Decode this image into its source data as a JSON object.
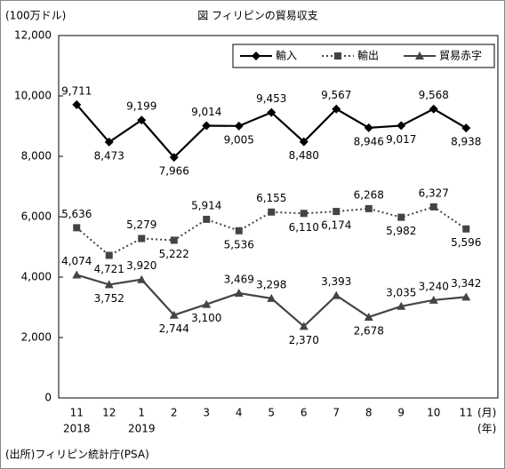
{
  "chart_data": {
    "type": "line",
    "title": "図 フィリピンの貿易収支",
    "y_unit": "(100万ドル)",
    "x_unit_month": "(月)",
    "x_unit_year": "(年)",
    "source": "(出所)フィリピン統計庁(PSA)",
    "categories": [
      "11",
      "12",
      "1",
      "2",
      "3",
      "4",
      "5",
      "6",
      "7",
      "8",
      "9",
      "10",
      "11"
    ],
    "year_labels": [
      "2018",
      null,
      "2019",
      null,
      null,
      null,
      null,
      null,
      null,
      null,
      null,
      null,
      null
    ],
    "ylim": [
      0,
      12000
    ],
    "yticks": [
      0,
      {
        "value": 2000,
        "label": "2,000"
      },
      {
        "value": 4000,
        "label": "4,000"
      },
      {
        "value": 6000,
        "label": "6,000"
      },
      {
        "value": 8000,
        "label": "8,000"
      },
      {
        "value": 10000,
        "label": "10,000"
      },
      {
        "value": 12000,
        "label": "12,000"
      }
    ],
    "legend": "top-right",
    "series": [
      {
        "name": "輸入",
        "color": "#000000",
        "marker": "diamond",
        "dash": "solid",
        "values": [
          9711,
          8473,
          9199,
          7966,
          9014,
          9005,
          9453,
          8480,
          9567,
          8946,
          9017,
          9568,
          8938
        ],
        "value_labels": [
          "9,711",
          "8,473",
          "9,199",
          "7,966",
          "9,014",
          "9,005",
          "9,453",
          "8,480",
          "9,567",
          "8,946",
          "9,017",
          "9,568",
          "8,938"
        ]
      },
      {
        "name": "輸出",
        "color": "#444444",
        "marker": "square",
        "dash": "dotted",
        "values": [
          5636,
          4721,
          5279,
          5222,
          5914,
          5536,
          6155,
          6110,
          6174,
          6268,
          5982,
          6327,
          5596
        ],
        "value_labels": [
          "5,636",
          "4,721",
          "5,279",
          "5,222",
          "5,914",
          "5,536",
          "6,155",
          "6,110",
          "6,174",
          "6,268",
          "5,982",
          "6,327",
          "5,596"
        ]
      },
      {
        "name": "貿易赤字",
        "color": "#444444",
        "marker": "triangle",
        "dash": "solid",
        "values": [
          4074,
          3752,
          3920,
          2744,
          3100,
          3469,
          3298,
          2370,
          3393,
          2678,
          3035,
          3240,
          3342
        ],
        "value_labels": [
          "4,074",
          "3,752",
          "3,920",
          "2,744",
          "3,100",
          "3,469",
          "3,298",
          "2,370",
          "3,393",
          "2,678",
          "3,035",
          "3,240",
          "3,342"
        ]
      }
    ]
  }
}
